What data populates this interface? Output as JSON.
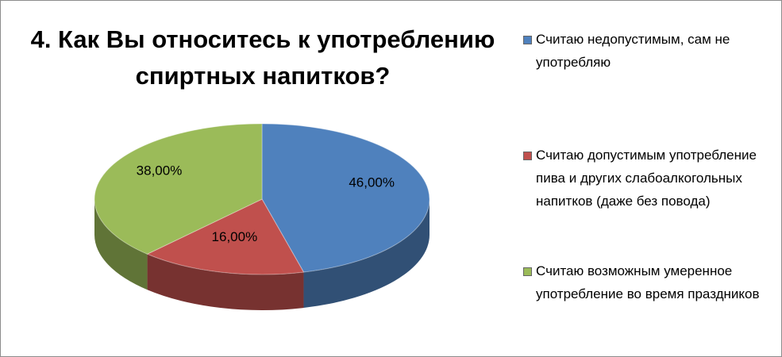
{
  "chart_data": {
    "type": "pie3d",
    "title": "4. Как Вы относитесь к употреблению спиртных напитков?",
    "categories": [
      "Считаю недопустимым, сам не употребляю",
      "Считаю допустимым употребление пива и других слабоалкогольных напитков (даже без повода)",
      "Считаю возможным умеренное употребление во время праздников"
    ],
    "values": [
      46,
      16,
      38
    ],
    "value_labels": [
      "46,00%",
      "16,00%",
      "38,00%"
    ],
    "colors": [
      "#4f81bd",
      "#c0504d",
      "#9bbb59"
    ],
    "legend": "right"
  }
}
